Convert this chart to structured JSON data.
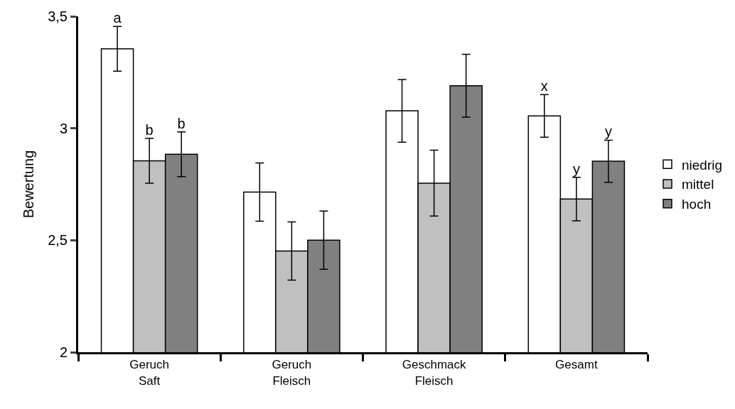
{
  "chart_data": {
    "type": "bar",
    "ylabel": "Bewertung",
    "categories": [
      "Geruch\nSaft",
      "Geruch\nFleisch",
      "Geschmack\nFleisch",
      "Gesamt"
    ],
    "series": [
      {
        "name": "niedrig",
        "color": "#ffffff",
        "values": [
          3.355,
          2.715,
          3.078,
          3.055
        ],
        "errors": [
          0.1,
          0.13,
          0.14,
          0.095
        ],
        "value_labels": [
          "a",
          null,
          null,
          "x"
        ]
      },
      {
        "name": "mittel",
        "color": "#c0c0c0",
        "values": [
          2.855,
          2.452,
          2.755,
          2.684
        ],
        "errors": [
          0.1,
          0.13,
          0.147,
          0.097
        ],
        "value_labels": [
          "b",
          null,
          null,
          "y"
        ]
      },
      {
        "name": "hoch",
        "color": "#808080",
        "values": [
          2.884,
          2.5,
          3.19,
          2.853
        ],
        "errors": [
          0.1,
          0.13,
          0.14,
          0.094
        ],
        "value_labels": [
          "b",
          null,
          null,
          "y"
        ]
      }
    ],
    "ylim": [
      2,
      3.5
    ],
    "yticks": [
      2,
      {
        "value": 2.5,
        "label": "2,5"
      },
      3,
      {
        "value": 3.5,
        "label": "3,5"
      }
    ],
    "grid": false,
    "legend": "right"
  }
}
